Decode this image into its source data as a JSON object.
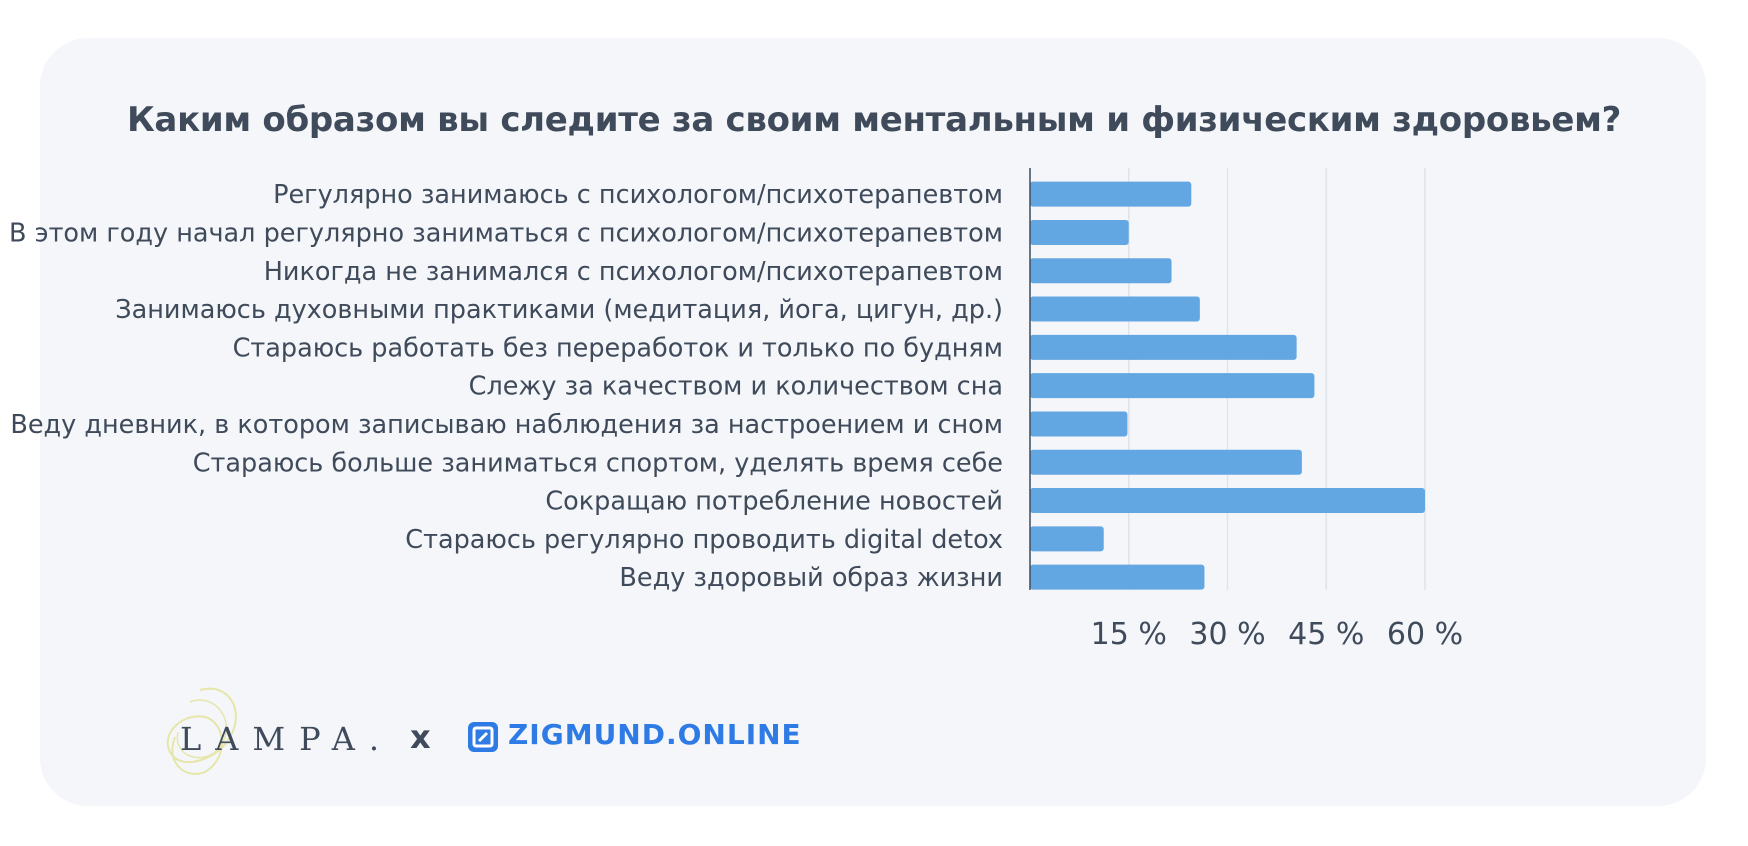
{
  "chart_data": {
    "type": "bar",
    "orientation": "horizontal",
    "title": "Каким образом вы следите за своим ментальным и физическим здоровьем?",
    "categories": [
      "Регулярно занимаюсь с психологом/психотерапевтом",
      "В этом году начал регулярно заниматься с психологом/психотерапевтом",
      "Никогда не занимался с психологом/психотерапевтом",
      "Занимаюсь духовными практиками (медитация, йога, цигун, др.)",
      "Стараюсь работать без переработок и только по будням",
      "Слежу за качеством и количеством сна",
      "Веду дневник, в котором записываю наблюдения за настроением и сном",
      "Стараюсь больше заниматься спортом, уделять время себе",
      "Сокращаю потребление новостей",
      "Стараюсь регулярно проводить digital detox",
      "Веду здоровый образ жизни"
    ],
    "values": [
      24.5,
      15,
      21.5,
      25.8,
      40.5,
      43.2,
      14.8,
      41.3,
      60,
      11.2,
      26.5
    ],
    "x_ticks": [
      15,
      30,
      45,
      60
    ],
    "x_tick_labels": [
      "15 %",
      "30 %",
      "45 %",
      "60 %"
    ],
    "xlim": [
      0,
      60
    ],
    "grid": true,
    "bar_color": "#63a7e2"
  },
  "logos": {
    "lampa": "LAMPA.",
    "separator": "x",
    "zigmund": "ZIGMUND.ONLINE"
  },
  "colors": {
    "text": "#3f4a5a",
    "card_background": "#f4f6fa",
    "brand_blue": "#2f7be6",
    "lampa_swirl": "#e6e6a8"
  }
}
